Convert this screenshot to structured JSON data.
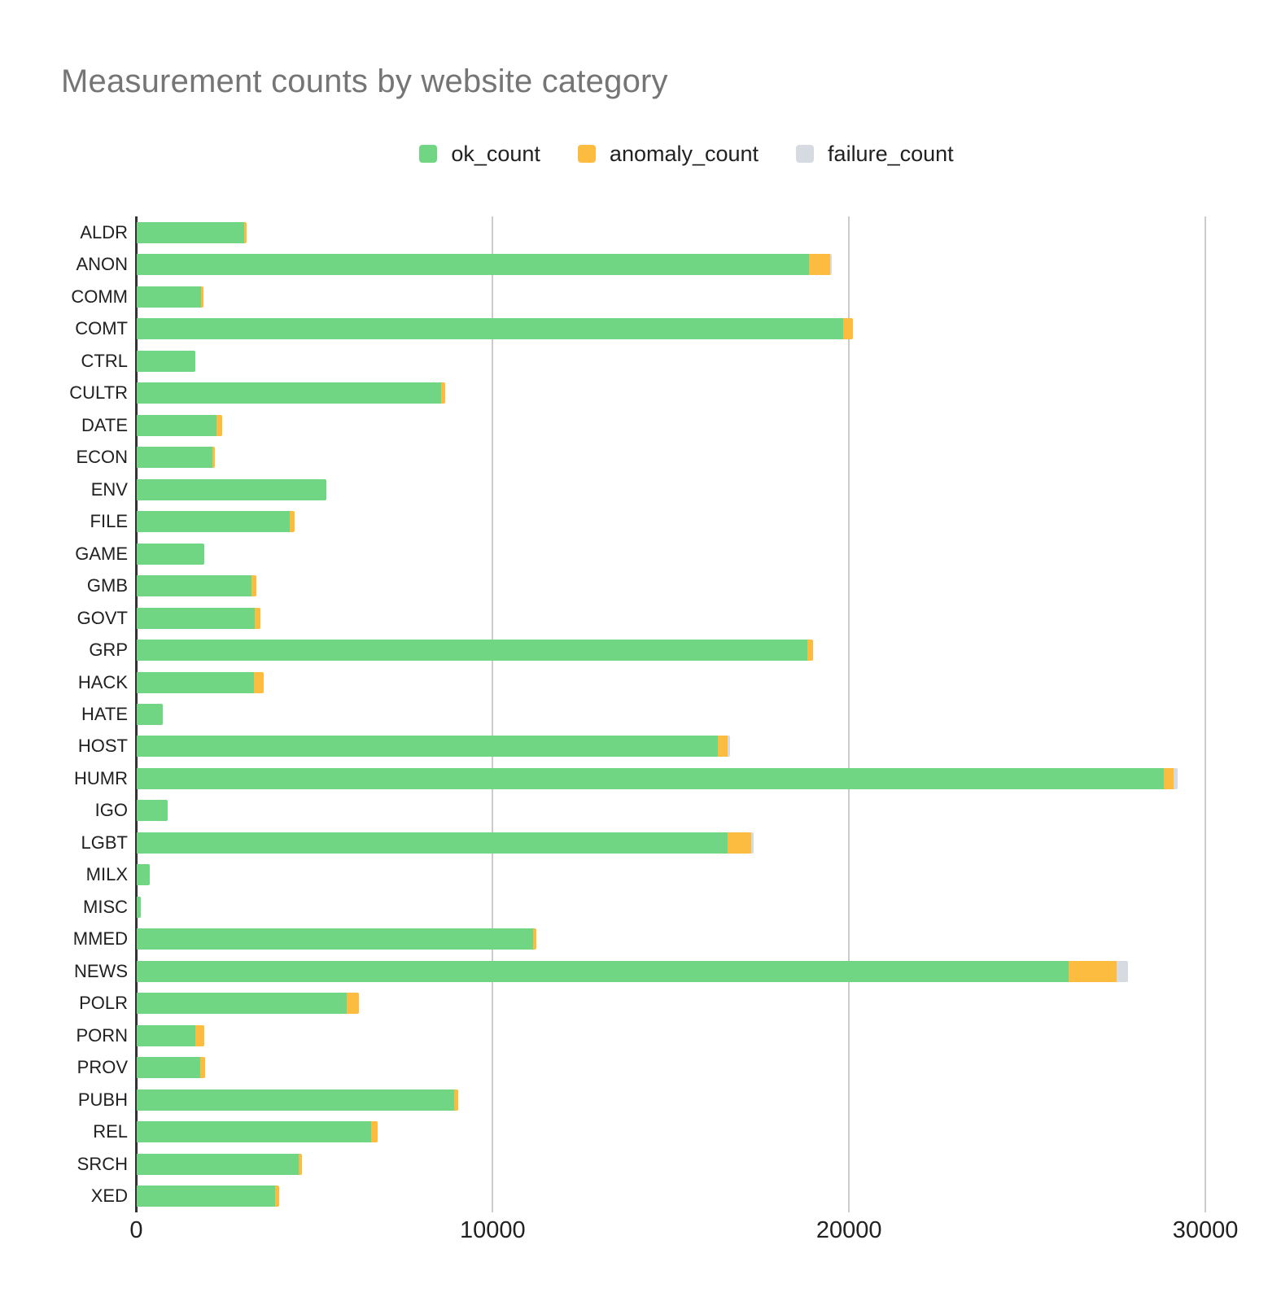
{
  "chart_data": {
    "type": "bar",
    "orientation": "horizontal",
    "stacked": true,
    "title": "Measurement counts by website category",
    "legend_position": "top-center",
    "grid": "vertical",
    "x_ticks": [
      0,
      10000,
      20000,
      30000
    ],
    "x_tick_labels": [
      "0",
      "10000",
      "20000",
      "30000"
    ],
    "xlim": [
      0,
      30890
    ],
    "categories": [
      "ALDR",
      "ANON",
      "COMM",
      "COMT",
      "CTRL",
      "CULTR",
      "DATE",
      "ECON",
      "ENV",
      "FILE",
      "GAME",
      "GMB",
      "GOVT",
      "GRP",
      "HACK",
      "HATE",
      "HOST",
      "HUMR",
      "IGO",
      "LGBT",
      "MILX",
      "MISC",
      "MMED",
      "NEWS",
      "POLR",
      "PORN",
      "PROV",
      "PUBH",
      "REL",
      "SRCH",
      "XED"
    ],
    "series": [
      {
        "name": "ok_count",
        "color": "#71d683",
        "values": [
          3030,
          18880,
          1815,
          19840,
          1650,
          8550,
          2260,
          2130,
          5340,
          4310,
          1900,
          3230,
          3330,
          18830,
          3310,
          750,
          16320,
          28830,
          870,
          16590,
          375,
          120,
          11140,
          26160,
          5910,
          1660,
          1790,
          8910,
          6590,
          4550,
          3890
        ]
      },
      {
        "name": "anomaly_count",
        "color": "#fbbc3f",
        "values": [
          60,
          600,
          75,
          280,
          0,
          110,
          160,
          65,
          0,
          130,
          0,
          130,
          160,
          160,
          270,
          0,
          275,
          280,
          0,
          670,
          0,
          0,
          80,
          1360,
          340,
          255,
          130,
          130,
          180,
          100,
          115
        ]
      },
      {
        "name": "failure_count",
        "color": "#d5dbe0",
        "values": [
          0,
          40,
          0,
          0,
          0,
          0,
          0,
          0,
          0,
          0,
          0,
          0,
          0,
          0,
          0,
          0,
          60,
          115,
          0,
          75,
          0,
          0,
          0,
          320,
          0,
          0,
          0,
          0,
          0,
          0,
          0
        ]
      }
    ],
    "style": {
      "title_color": "#757575",
      "text_color": "#212121",
      "gridline_color": "#cccccc",
      "axis_line_color": "#333333",
      "background": "#ffffff"
    }
  }
}
